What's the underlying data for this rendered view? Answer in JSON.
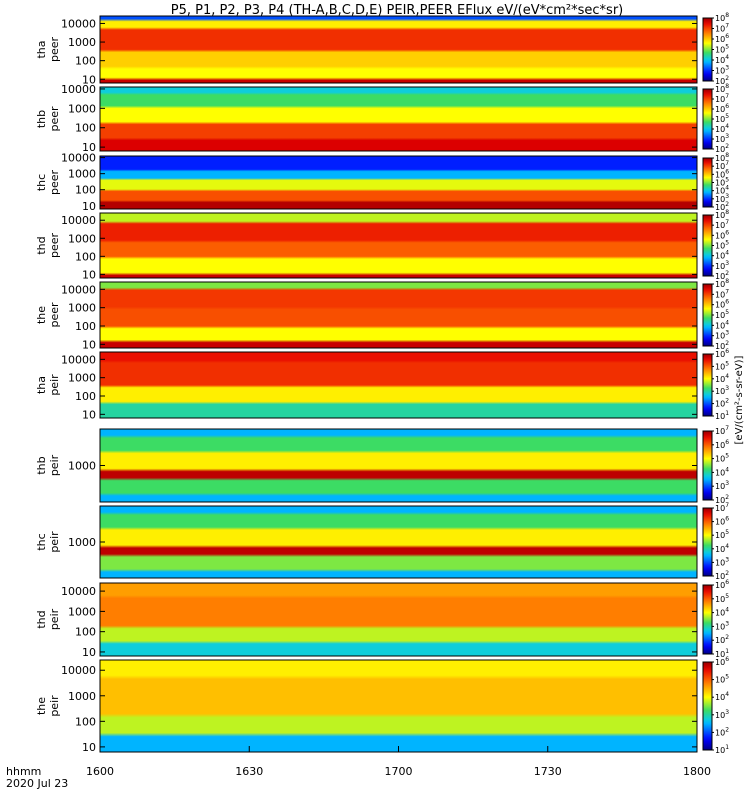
{
  "chart_data": {
    "type": "heatmap",
    "title": "P5, P1, P2, P3, P4 (TH-A,B,C,D,E) PEIR,PEER EFlux eV/(eV*cm²*sec*sr)",
    "time_label": "hhmm",
    "date_label": "2020 Jul 23",
    "x_ticks": [
      "1600",
      "1630",
      "1700",
      "1730",
      "1800"
    ],
    "x_range": [
      0,
      120
    ],
    "x_unit": "minutes after 1600 UT",
    "colorbar_label": "[eV/(cm²-s-sr-eV)]",
    "colorbar_exponents": [
      "2",
      "3",
      "4",
      "5",
      "6",
      "7",
      "8"
    ],
    "panels": [
      {
        "probe": "tha",
        "type": "peer",
        "ylabel1": "tha",
        "ylabel2": "peer",
        "yticks": [
          "10",
          "100",
          "1000",
          "10000"
        ],
        "ylog_range": [
          0.8,
          4.4
        ],
        "cbar": [
          2,
          8
        ]
      },
      {
        "probe": "thb",
        "type": "peer",
        "ylabel1": "thb",
        "ylabel2": "peer",
        "yticks": [
          "10",
          "100",
          "1000",
          "10000"
        ],
        "ylog_range": [
          0.8,
          4.1
        ],
        "cbar": [
          2,
          8
        ]
      },
      {
        "probe": "thc",
        "type": "peer",
        "ylabel1": "thc",
        "ylabel2": "peer",
        "yticks": [
          "10",
          "100",
          "1000",
          "10000"
        ],
        "ylog_range": [
          0.8,
          4.1
        ],
        "cbar": [
          2,
          8
        ]
      },
      {
        "probe": "thd",
        "type": "peer",
        "ylabel1": "thd",
        "ylabel2": "peer",
        "yticks": [
          "10",
          "100",
          "1000",
          "10000"
        ],
        "ylog_range": [
          0.8,
          4.4
        ],
        "cbar": [
          2,
          8
        ]
      },
      {
        "probe": "the",
        "type": "peer",
        "ylabel1": "the",
        "ylabel2": "peer",
        "yticks": [
          "10",
          "100",
          "1000",
          "10000"
        ],
        "ylog_range": [
          0.8,
          4.4
        ],
        "cbar": [
          2,
          8
        ]
      },
      {
        "probe": "tha",
        "type": "peir",
        "ylabel1": "tha",
        "ylabel2": "peir",
        "yticks": [
          "10",
          "100",
          "1000",
          "10000"
        ],
        "ylog_range": [
          0.8,
          4.4
        ],
        "cbar": [
          1,
          6
        ]
      },
      {
        "probe": "thb",
        "type": "peir",
        "ylabel1": "thb",
        "ylabel2": "peir",
        "yticks": [
          "1000"
        ],
        "ylog_range": [
          2.0,
          4.0
        ],
        "cbar": [
          2,
          7
        ]
      },
      {
        "probe": "thc",
        "type": "peir",
        "ylabel1": "thc",
        "ylabel2": "peir",
        "yticks": [
          "1000"
        ],
        "ylog_range": [
          2.0,
          4.0
        ],
        "cbar": [
          2,
          7
        ]
      },
      {
        "probe": "thd",
        "type": "peir",
        "ylabel1": "thd",
        "ylabel2": "peir",
        "yticks": [
          "10",
          "100",
          "1000",
          "10000"
        ],
        "ylog_range": [
          0.8,
          4.4
        ],
        "cbar": [
          1,
          6
        ]
      },
      {
        "probe": "the",
        "type": "peir",
        "ylabel1": "the",
        "ylabel2": "peir",
        "yticks": [
          "10",
          "100",
          "1000",
          "10000"
        ],
        "ylog_range": [
          0.8,
          4.4
        ],
        "cbar": [
          1,
          6
        ]
      }
    ]
  }
}
